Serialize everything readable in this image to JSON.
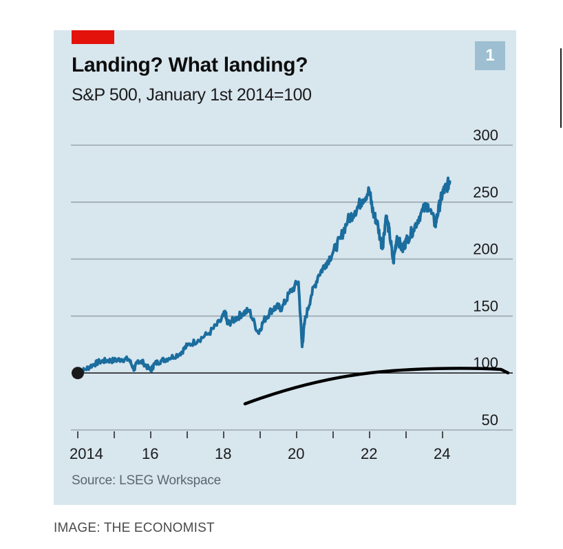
{
  "title": "Landing? What landing?",
  "subtitle": "S&P 500, January 1st 2014=100",
  "chart_number": "1",
  "source": "Source: LSEG Workspace",
  "credit": "IMAGE: THE ECONOMIST",
  "colors": {
    "panel_background": "#d8e6ee",
    "series_line": "#1b6d9e",
    "brand_red": "#e3120b",
    "number_badge": "#9dbfd1",
    "annotation_ink": "#000000"
  },
  "chart_data": {
    "type": "line",
    "title": "Landing? What landing?",
    "subtitle": "S&P 500, January 1st 2014=100",
    "ylim": [
      50,
      300
    ],
    "yticks": [
      50,
      100,
      150,
      200,
      250,
      300
    ],
    "ytick_labels": [
      "50",
      "100",
      "150",
      "200",
      "250",
      "300"
    ],
    "xlim": [
      2014,
      2026
    ],
    "xticks": [
      2014,
      2015,
      2016,
      2017,
      2018,
      2019,
      2020,
      2021,
      2022,
      2023,
      2024
    ],
    "xtick_labels": [
      "2014",
      "16",
      "18",
      "20",
      "22",
      "24"
    ],
    "xtick_label_years": [
      2014,
      2016,
      2018,
      2020,
      2022,
      2024
    ],
    "grid": "horizontal",
    "baseline": 100,
    "start_marker": [
      2014.0,
      100
    ],
    "series": [
      {
        "x": [
          2014.0,
          2014.2,
          2014.4,
          2014.6,
          2014.8,
          2015.0,
          2015.2,
          2015.4,
          2015.55,
          2015.65,
          2015.8,
          2016.0,
          2016.1,
          2016.3,
          2016.5,
          2016.8,
          2017.0,
          2017.3,
          2017.6,
          2017.9,
          2018.05,
          2018.1,
          2018.3,
          2018.5,
          2018.7,
          2018.95,
          2019.1,
          2019.3,
          2019.45,
          2019.6,
          2019.8,
          2020.05,
          2020.15,
          2020.22,
          2020.4,
          2020.6,
          2020.8,
          2021.0,
          2021.2,
          2021.4,
          2021.6,
          2021.8,
          2021.99,
          2022.1,
          2022.2,
          2022.35,
          2022.45,
          2022.55,
          2022.65,
          2022.75,
          2022.9,
          2023.0,
          2023.2,
          2023.4,
          2023.6,
          2023.8,
          2023.9,
          2024.0,
          2024.1,
          2024.2
        ],
        "y": [
          100,
          103,
          107,
          110,
          111,
          111,
          112,
          112,
          103,
          111,
          109,
          102,
          108,
          111,
          113,
          117,
          124,
          129,
          135,
          145,
          153,
          143,
          147,
          152,
          155,
          135,
          146,
          155,
          158,
          157,
          170,
          180,
          123,
          145,
          168,
          186,
          196,
          206,
          218,
          234,
          242,
          252,
          260,
          240,
          233,
          209,
          238,
          222,
          197,
          220,
          208,
          216,
          226,
          240,
          248,
          230,
          245,
          258,
          263,
          268
        ]
      }
    ]
  }
}
